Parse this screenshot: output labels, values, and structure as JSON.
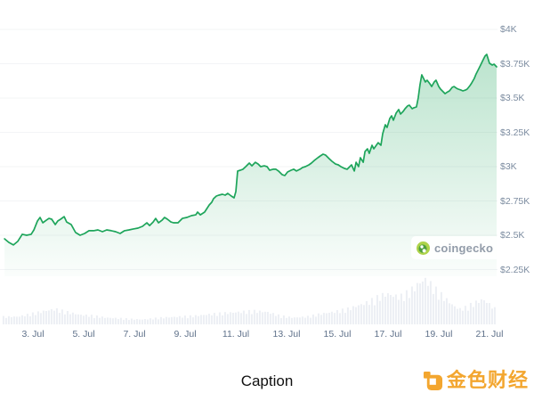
{
  "page": {
    "caption": "Caption"
  },
  "watermark": {
    "label": "coingecko"
  },
  "brand_badge": {
    "label": "金色财经"
  },
  "chart_data": {
    "type": "area",
    "title": "",
    "currency": "USD",
    "grid": "horizontal",
    "legend": "none",
    "x_axis": {
      "tick_labels": [
        "3. Jul",
        "5. Jul",
        "7. Jul",
        "9. Jul",
        "11. Jul",
        "13. Jul",
        "15. Jul",
        "17. Jul",
        "19. Jul",
        "21. Jul"
      ],
      "tick_days": [
        3,
        5,
        7,
        9,
        11,
        13,
        15,
        17,
        19,
        21
      ],
      "day_range": [
        1.84,
        21.3
      ]
    },
    "y_axis": {
      "side": "right",
      "tick_labels": [
        "$4K",
        "$3.75K",
        "$3.5K",
        "$3.25K",
        "$3K",
        "$2.75K",
        "$2.5K",
        "$2.25K"
      ],
      "tick_values": [
        4000,
        3750,
        3500,
        3250,
        3000,
        2750,
        2500,
        2250
      ],
      "top_value": 4000,
      "step": 250
    },
    "series": [
      {
        "name": "price",
        "points": [
          [
            1.88,
            2474
          ],
          [
            2.05,
            2448
          ],
          [
            2.23,
            2429
          ],
          [
            2.4,
            2455
          ],
          [
            2.58,
            2507
          ],
          [
            2.75,
            2500
          ],
          [
            2.93,
            2507
          ],
          [
            3.04,
            2539
          ],
          [
            3.18,
            2604
          ],
          [
            3.28,
            2630
          ],
          [
            3.39,
            2591
          ],
          [
            3.53,
            2610
          ],
          [
            3.63,
            2623
          ],
          [
            3.74,
            2617
          ],
          [
            3.88,
            2578
          ],
          [
            3.98,
            2604
          ],
          [
            4.09,
            2617
          ],
          [
            4.23,
            2636
          ],
          [
            4.33,
            2597
          ],
          [
            4.51,
            2578
          ],
          [
            4.68,
            2520
          ],
          [
            4.86,
            2500
          ],
          [
            5.04,
            2513
          ],
          [
            5.21,
            2533
          ],
          [
            5.39,
            2533
          ],
          [
            5.56,
            2539
          ],
          [
            5.74,
            2526
          ],
          [
            5.91,
            2539
          ],
          [
            6.09,
            2533
          ],
          [
            6.26,
            2526
          ],
          [
            6.44,
            2513
          ],
          [
            6.61,
            2533
          ],
          [
            6.79,
            2539
          ],
          [
            6.96,
            2546
          ],
          [
            7.14,
            2552
          ],
          [
            7.32,
            2565
          ],
          [
            7.49,
            2591
          ],
          [
            7.6,
            2571
          ],
          [
            7.74,
            2597
          ],
          [
            7.84,
            2623
          ],
          [
            7.95,
            2591
          ],
          [
            8.09,
            2610
          ],
          [
            8.19,
            2630
          ],
          [
            8.3,
            2617
          ],
          [
            8.44,
            2597
          ],
          [
            8.54,
            2591
          ],
          [
            8.72,
            2591
          ],
          [
            8.89,
            2623
          ],
          [
            9.07,
            2630
          ],
          [
            9.25,
            2643
          ],
          [
            9.42,
            2649
          ],
          [
            9.49,
            2669
          ],
          [
            9.6,
            2649
          ],
          [
            9.77,
            2669
          ],
          [
            9.95,
            2721
          ],
          [
            10.05,
            2740
          ],
          [
            10.12,
            2766
          ],
          [
            10.23,
            2786
          ],
          [
            10.33,
            2792
          ],
          [
            10.47,
            2799
          ],
          [
            10.58,
            2792
          ],
          [
            10.68,
            2805
          ],
          [
            10.82,
            2786
          ],
          [
            10.93,
            2773
          ],
          [
            11.0,
            2818
          ],
          [
            11.07,
            2968
          ],
          [
            11.18,
            2974
          ],
          [
            11.28,
            2981
          ],
          [
            11.39,
            3000
          ],
          [
            11.53,
            3026
          ],
          [
            11.63,
            3006
          ],
          [
            11.77,
            3032
          ],
          [
            11.88,
            3019
          ],
          [
            11.98,
            3000
          ],
          [
            12.12,
            3006
          ],
          [
            12.23,
            3000
          ],
          [
            12.33,
            2974
          ],
          [
            12.47,
            2981
          ],
          [
            12.58,
            2981
          ],
          [
            12.68,
            2968
          ],
          [
            12.82,
            2942
          ],
          [
            12.93,
            2935
          ],
          [
            13.04,
            2961
          ],
          [
            13.18,
            2974
          ],
          [
            13.28,
            2981
          ],
          [
            13.39,
            2968
          ],
          [
            13.53,
            2981
          ],
          [
            13.63,
            2994
          ],
          [
            13.74,
            3000
          ],
          [
            13.88,
            3013
          ],
          [
            13.98,
            3026
          ],
          [
            14.09,
            3045
          ],
          [
            14.23,
            3065
          ],
          [
            14.33,
            3078
          ],
          [
            14.44,
            3091
          ],
          [
            14.54,
            3084
          ],
          [
            14.68,
            3058
          ],
          [
            14.79,
            3039
          ],
          [
            14.93,
            3019
          ],
          [
            15.04,
            3013
          ],
          [
            15.14,
            3000
          ],
          [
            15.28,
            2987
          ],
          [
            15.39,
            2981
          ],
          [
            15.49,
            3000
          ],
          [
            15.56,
            3013
          ],
          [
            15.67,
            2968
          ],
          [
            15.74,
            3032
          ],
          [
            15.84,
            3000
          ],
          [
            15.91,
            3065
          ],
          [
            16.02,
            3032
          ],
          [
            16.09,
            3110
          ],
          [
            16.19,
            3130
          ],
          [
            16.26,
            3097
          ],
          [
            16.37,
            3156
          ],
          [
            16.44,
            3130
          ],
          [
            16.61,
            3175
          ],
          [
            16.72,
            3156
          ],
          [
            16.79,
            3240
          ],
          [
            16.89,
            3305
          ],
          [
            16.96,
            3286
          ],
          [
            17.07,
            3351
          ],
          [
            17.14,
            3370
          ],
          [
            17.21,
            3338
          ],
          [
            17.32,
            3390
          ],
          [
            17.42,
            3416
          ],
          [
            17.49,
            3383
          ],
          [
            17.6,
            3403
          ],
          [
            17.67,
            3422
          ],
          [
            17.77,
            3442
          ],
          [
            17.84,
            3448
          ],
          [
            17.95,
            3422
          ],
          [
            18.02,
            3429
          ],
          [
            18.12,
            3435
          ],
          [
            18.19,
            3500
          ],
          [
            18.26,
            3597
          ],
          [
            18.33,
            3669
          ],
          [
            18.4,
            3643
          ],
          [
            18.47,
            3617
          ],
          [
            18.54,
            3630
          ],
          [
            18.65,
            3604
          ],
          [
            18.72,
            3584
          ],
          [
            18.82,
            3617
          ],
          [
            18.89,
            3630
          ],
          [
            19.0,
            3584
          ],
          [
            19.07,
            3565
          ],
          [
            19.18,
            3545
          ],
          [
            19.25,
            3532
          ],
          [
            19.35,
            3545
          ],
          [
            19.42,
            3552
          ],
          [
            19.53,
            3578
          ],
          [
            19.6,
            3584
          ],
          [
            19.7,
            3571
          ],
          [
            19.77,
            3565
          ],
          [
            19.88,
            3558
          ],
          [
            19.95,
            3552
          ],
          [
            20.05,
            3558
          ],
          [
            20.12,
            3565
          ],
          [
            20.23,
            3591
          ],
          [
            20.3,
            3610
          ],
          [
            20.4,
            3643
          ],
          [
            20.47,
            3675
          ],
          [
            20.58,
            3714
          ],
          [
            20.65,
            3740
          ],
          [
            20.75,
            3779
          ],
          [
            20.82,
            3805
          ],
          [
            20.89,
            3818
          ],
          [
            21.0,
            3753
          ],
          [
            21.11,
            3740
          ],
          [
            21.18,
            3747
          ],
          [
            21.28,
            3727
          ]
        ]
      }
    ],
    "volume_profile": {
      "unit": "px",
      "points": [
        [
          1.84,
          8
        ],
        [
          2.4,
          8
        ],
        [
          2.93,
          11
        ],
        [
          3.46,
          14
        ],
        [
          3.88,
          16
        ],
        [
          4.33,
          13
        ],
        [
          4.86,
          10
        ],
        [
          5.39,
          9
        ],
        [
          5.91,
          7
        ],
        [
          6.61,
          6
        ],
        [
          7.32,
          5
        ],
        [
          8.02,
          7
        ],
        [
          8.72,
          8
        ],
        [
          9.42,
          9
        ],
        [
          10.12,
          11
        ],
        [
          10.65,
          12
        ],
        [
          11.18,
          13
        ],
        [
          11.7,
          14
        ],
        [
          12.23,
          13
        ],
        [
          12.75,
          9
        ],
        [
          13.28,
          7
        ],
        [
          13.81,
          8
        ],
        [
          14.33,
          11
        ],
        [
          14.86,
          13
        ],
        [
          15.39,
          16
        ],
        [
          15.74,
          19
        ],
        [
          16.09,
          22
        ],
        [
          16.44,
          26
        ],
        [
          16.72,
          30
        ],
        [
          16.96,
          32
        ],
        [
          17.21,
          30
        ],
        [
          17.49,
          29
        ],
        [
          17.77,
          33
        ],
        [
          18.02,
          38
        ],
        [
          18.26,
          44
        ],
        [
          18.47,
          47
        ],
        [
          18.68,
          42
        ],
        [
          18.89,
          36
        ],
        [
          19.14,
          30
        ],
        [
          19.39,
          24
        ],
        [
          19.6,
          19
        ],
        [
          19.84,
          16
        ],
        [
          20.09,
          18
        ],
        [
          20.3,
          21
        ],
        [
          20.54,
          24
        ],
        [
          20.75,
          26
        ],
        [
          20.96,
          22
        ],
        [
          21.14,
          18
        ],
        [
          21.28,
          15
        ]
      ]
    },
    "colors": {
      "line": "#1ea55b",
      "area_top": "rgba(30,165,91,0.30)",
      "area_bottom": "rgba(30,165,91,0.02)",
      "volume": "#eceff4",
      "grid": "#f3f4f6",
      "y_label": "#7c8ca0",
      "x_label": "#5f718a",
      "watermark_text": "#929ca9",
      "gecko_outer": "#aed34a",
      "gecko_inner": "#4e9f3d",
      "brand_orange": "#f3a62f",
      "caption_text": "#111111"
    }
  }
}
